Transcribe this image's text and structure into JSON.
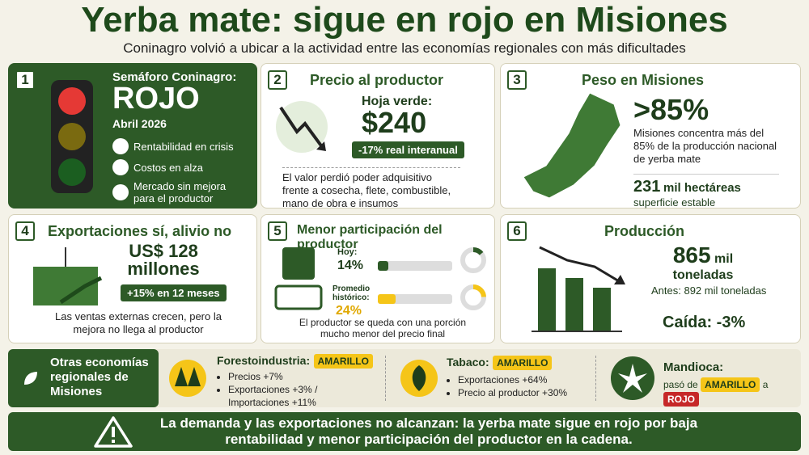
{
  "header": {
    "title": "Yerba mate: sigue en rojo en Misiones",
    "subtitle": "Coninagro volvió a ubicar a la actividad entre las economías regionales con más dificultades"
  },
  "semaforo": {
    "number": "1",
    "label": "Semáforo Coninagro:",
    "status": "ROJO",
    "date": "Abril 2026",
    "items": [
      "Rentabilidad en crisis",
      "Costos en alza",
      "Mercado sin mejora para el productor"
    ]
  },
  "precio": {
    "number": "2",
    "title": "Precio al productor",
    "label": "Hoja verde:",
    "value": "$240",
    "badge": "-17% real interanual",
    "text": "El valor perdió poder adquisitivo frente a cosecha, flete, combustible, mano de obra e insumos"
  },
  "peso": {
    "number": "3",
    "title": "Peso en Misiones",
    "value": ">85%",
    "text": "Misiones concentra más del 85% de la producción nacional de yerba mate",
    "area": "231",
    "area_unit": "mil hectáreas",
    "area_note": "superficie estable"
  },
  "exportaciones": {
    "number": "4",
    "title": "Exportaciones sí, alivio no",
    "value": "US$ 128",
    "unit": "millones",
    "badge": "+15% en 12 meses",
    "text": "Las ventas externas crecen, pero la mejora no llega al productor"
  },
  "participacion": {
    "number": "5",
    "title": "Menor participación del productor",
    "current_label": "Hoy:",
    "current": {
      "value": 14,
      "label": "14%"
    },
    "historic_label": "Promedio histórico:",
    "historic": {
      "value": 24,
      "label": "24%"
    },
    "text": "El productor se queda con una porción mucho menor del precio final"
  },
  "produccion": {
    "number": "6",
    "title": "Producción",
    "value": "865",
    "value_unit": "mil",
    "unit": "toneladas",
    "before": "Antes: 892 mil toneladas",
    "change": "Caída: -3%"
  },
  "otras": {
    "title": "Otras economías regionales de Misiones",
    "forestoindustria": {
      "name": "Forestoindustria:",
      "status": "AMARILLO",
      "items": [
        "Precios +7%",
        "Exportaciones +3% / Importaciones +11%"
      ]
    },
    "tabaco": {
      "name": "Tabaco:",
      "status": "AMARILLO",
      "items": [
        "Exportaciones +64%",
        "Precio al productor +30%"
      ]
    },
    "mandioca": {
      "name": "Mandioca:",
      "from_text": "pasó de",
      "from": "AMARILLO",
      "to_text": "a",
      "to": "ROJO"
    }
  },
  "conclusion": "La demanda y las exportaciones no alcanzan: la yerba mate sigue en rojo por baja rentabilidad y menor participación del productor en la cadena."
}
